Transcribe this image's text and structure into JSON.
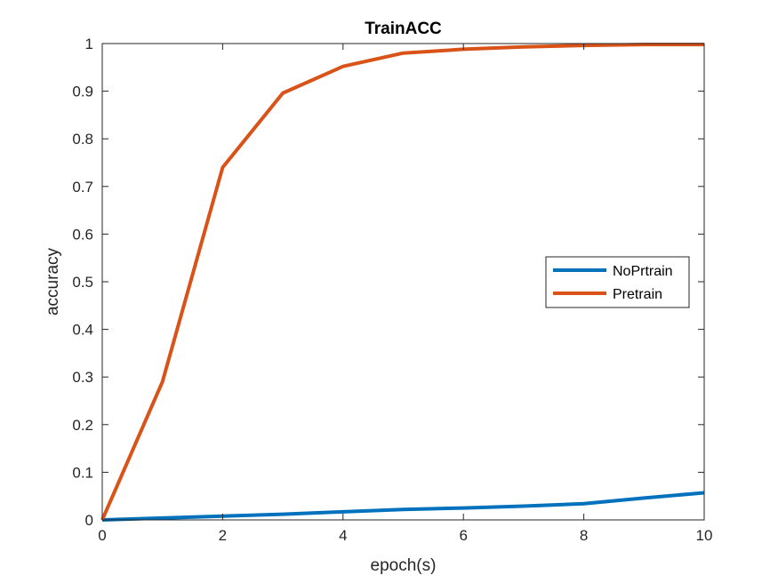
{
  "chart_data": {
    "type": "line",
    "title": "TrainACC",
    "xlabel": "epoch(s)",
    "ylabel": "accuracy",
    "xlim": [
      0,
      10
    ],
    "ylim": [
      0,
      1
    ],
    "xticks": [
      0,
      2,
      4,
      6,
      8,
      10
    ],
    "yticks": [
      0,
      0.1,
      0.2,
      0.3,
      0.4,
      0.5,
      0.6,
      0.7,
      0.8,
      0.9,
      1
    ],
    "x": [
      0,
      1,
      2,
      3,
      4,
      5,
      6,
      7,
      8,
      9,
      10
    ],
    "series": [
      {
        "name": "NoPrtrain",
        "color": "#0072BD",
        "values": [
          0,
          0.004,
          0.008,
          0.012,
          0.017,
          0.022,
          0.025,
          0.029,
          0.034,
          0.046,
          0.057
        ]
      },
      {
        "name": "Pretrain",
        "color": "#D95319",
        "values": [
          0,
          0.29,
          0.74,
          0.896,
          0.952,
          0.98,
          0.988,
          0.993,
          0.996,
          0.998,
          0.998
        ]
      }
    ],
    "grid": false,
    "legend_position": "right"
  }
}
